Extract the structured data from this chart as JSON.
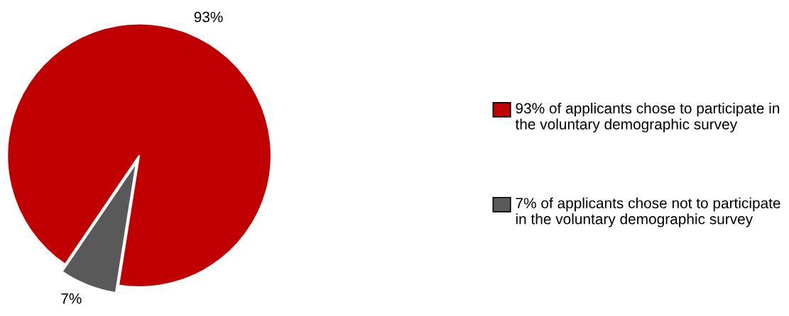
{
  "chart_data": {
    "type": "pie",
    "categories": [
      "93% of applicants chose to participate in the voluntary demographic survey",
      "7% of applicants chose not to participate in the voluntary demographic survey"
    ],
    "values": [
      93,
      7
    ],
    "colors": [
      "#c00000",
      "#595959"
    ],
    "value_labels": [
      "93%",
      "7%"
    ],
    "legend": "right"
  }
}
